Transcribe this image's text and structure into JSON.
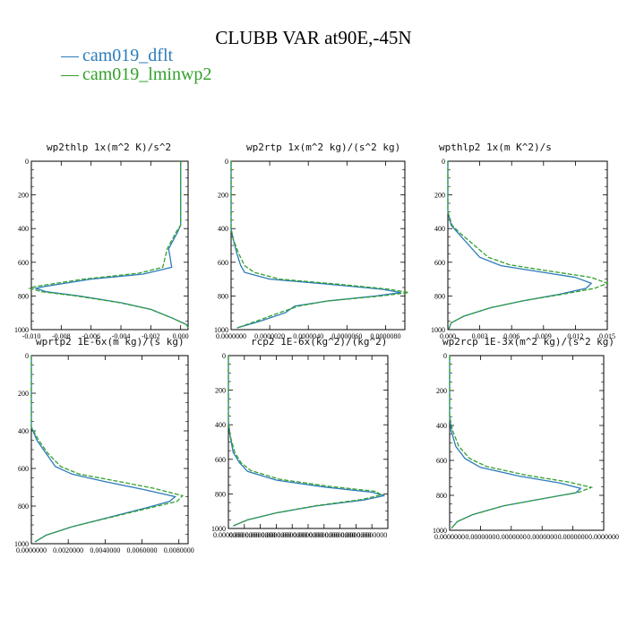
{
  "title": "CLUBB VAR at90E,-45N",
  "legend": [
    {
      "label": "cam019_dflt",
      "color": "#2b7bba"
    },
    {
      "label": "cam019_lminwp2",
      "color": "#33a02c"
    }
  ],
  "chart_data": [
    {
      "type": "line",
      "title": "wp2thlp  1x(m^2 K)/s^2",
      "xlim": [
        -0.01,
        0.0005
      ],
      "ylim": [
        1000,
        0
      ],
      "y_reversed": true,
      "xticks": [
        -0.01,
        -0.008,
        -0.006,
        -0.004,
        -0.002,
        0.0
      ],
      "xtick_labels": [
        "-0.010",
        "-0.008",
        "-0.006",
        "-0.004",
        "-0.002",
        "0.000"
      ],
      "yticks": [
        0,
        200,
        400,
        600,
        800,
        1000
      ],
      "ytick_labels": [
        "0",
        "200",
        "400",
        "600",
        "800",
        "1000"
      ],
      "series": [
        {
          "name": "cam019_dflt",
          "style": "solid",
          "points": [
            [
              0.0,
              0
            ],
            [
              0.0,
              200
            ],
            [
              0.0,
              380
            ],
            [
              -0.0002,
              420
            ],
            [
              -0.0008,
              520
            ],
            [
              -0.0006,
              630
            ],
            [
              -0.0025,
              670
            ],
            [
              -0.006,
              700
            ],
            [
              -0.0092,
              745
            ],
            [
              -0.0097,
              755
            ],
            [
              -0.009,
              775
            ],
            [
              -0.0068,
              800
            ],
            [
              -0.004,
              840
            ],
            [
              -0.002,
              880
            ],
            [
              -0.0006,
              930
            ],
            [
              0.0004,
              970
            ],
            [
              0.0005,
              990
            ]
          ]
        },
        {
          "name": "cam019_lminwp2",
          "style": "dashed",
          "points": [
            [
              0.0,
              0
            ],
            [
              0.0,
              200
            ],
            [
              0.0,
              380
            ],
            [
              -0.0003,
              420
            ],
            [
              -0.0009,
              520
            ],
            [
              -0.0012,
              630
            ],
            [
              -0.0028,
              665
            ],
            [
              -0.0065,
              700
            ],
            [
              -0.0098,
              745
            ],
            [
              -0.0101,
              755
            ],
            [
              -0.0093,
              775
            ],
            [
              -0.007,
              800
            ],
            [
              -0.0041,
              840
            ],
            [
              -0.002,
              880
            ],
            [
              -0.0006,
              930
            ],
            [
              0.0004,
              970
            ],
            [
              0.0005,
              990
            ]
          ]
        }
      ]
    },
    {
      "type": "line",
      "title": "wp2rtp  1x(m^2 kg)/(s^2 kg)",
      "xlim": [
        0.0,
        9e-06
      ],
      "ylim": [
        1000,
        0
      ],
      "y_reversed": true,
      "xticks": [
        0.0,
        2e-06,
        4e-06,
        6e-06,
        8e-06
      ],
      "xtick_labels": [
        "0.0000000",
        "0.0000020",
        "0.0000040",
        "0.0000060",
        "0.0000080"
      ],
      "yticks": [
        0,
        200,
        400,
        600,
        800,
        1000
      ],
      "ytick_labels": [
        "0",
        "200",
        "400",
        "600",
        "800",
        "1000"
      ],
      "series": [
        {
          "name": "cam019_dflt",
          "style": "solid",
          "points": [
            [
              0.0,
              0
            ],
            [
              0.0,
              300
            ],
            [
              0.0,
              400
            ],
            [
              1e-07,
              460
            ],
            [
              3e-07,
              550
            ],
            [
              5e-07,
              620
            ],
            [
              7e-07,
              660
            ],
            [
              2e-06,
              700
            ],
            [
              5e-06,
              730
            ],
            [
              7.8e-06,
              760
            ],
            [
              8.8e-06,
              780
            ],
            [
              7.5e-06,
              800
            ],
            [
              5e-06,
              830
            ],
            [
              3.3e-06,
              860
            ],
            [
              2.8e-06,
              900
            ],
            [
              1.5e-06,
              950
            ],
            [
              3e-07,
              990
            ]
          ]
        },
        {
          "name": "cam019_lminwp2",
          "style": "dashed",
          "points": [
            [
              0.0,
              0
            ],
            [
              0.0,
              300
            ],
            [
              0.0,
              400
            ],
            [
              1e-07,
              460
            ],
            [
              4e-07,
              550
            ],
            [
              7e-07,
              620
            ],
            [
              1.2e-06,
              660
            ],
            [
              2.5e-06,
              700
            ],
            [
              5.5e-06,
              730
            ],
            [
              8.2e-06,
              760
            ],
            [
              9.2e-06,
              780
            ],
            [
              7.8e-06,
              800
            ],
            [
              5e-06,
              830
            ],
            [
              3.5e-06,
              860
            ],
            [
              2.5e-06,
              900
            ],
            [
              1.3e-06,
              950
            ],
            [
              3e-07,
              990
            ]
          ]
        }
      ]
    },
    {
      "type": "line",
      "title": "wpthlp2  1x(m K^2)/s",
      "xlim": [
        0.0,
        0.015
      ],
      "ylim": [
        1000,
        0
      ],
      "y_reversed": true,
      "xticks": [
        0.0,
        0.003,
        0.006,
        0.009,
        0.012,
        0.015
      ],
      "xtick_labels": [
        "0.000",
        "0.003",
        "0.006",
        "0.009",
        "0.012",
        "0.015"
      ],
      "yticks": [
        0,
        200,
        400,
        600,
        800,
        1000
      ],
      "ytick_labels": [
        "0",
        "200",
        "400",
        "600",
        "800",
        "1000"
      ],
      "series": [
        {
          "name": "cam019_dflt",
          "style": "solid",
          "points": [
            [
              0.0,
              0
            ],
            [
              0.0,
              300
            ],
            [
              0.0003,
              380
            ],
            [
              0.001,
              430
            ],
            [
              0.002,
              500
            ],
            [
              0.003,
              570
            ],
            [
              0.005,
              620
            ],
            [
              0.009,
              660
            ],
            [
              0.012,
              690
            ],
            [
              0.0135,
              725
            ],
            [
              0.013,
              755
            ],
            [
              0.0105,
              790
            ],
            [
              0.007,
              830
            ],
            [
              0.004,
              870
            ],
            [
              0.0015,
              920
            ],
            [
              0.0003,
              960
            ],
            [
              0.0001,
              995
            ]
          ]
        },
        {
          "name": "cam019_lminwp2",
          "style": "dashed",
          "points": [
            [
              0.0,
              0
            ],
            [
              0.0,
              300
            ],
            [
              0.0004,
              380
            ],
            [
              0.0012,
              430
            ],
            [
              0.0025,
              500
            ],
            [
              0.0038,
              570
            ],
            [
              0.0058,
              615
            ],
            [
              0.0098,
              655
            ],
            [
              0.0135,
              690
            ],
            [
              0.015,
              725
            ],
            [
              0.0138,
              755
            ],
            [
              0.0108,
              790
            ],
            [
              0.007,
              830
            ],
            [
              0.004,
              870
            ],
            [
              0.0015,
              920
            ],
            [
              0.0003,
              960
            ],
            [
              0.0001,
              995
            ]
          ]
        }
      ]
    },
    {
      "type": "line",
      "title": "wprtp2  1E-6x(m kg)/(s kg)",
      "xlim": [
        0.0,
        0.0085
      ],
      "ylim": [
        1000,
        0
      ],
      "y_reversed": true,
      "xticks": [
        0.0,
        0.002,
        0.004,
        0.006,
        0.008
      ],
      "xtick_labels": [
        "0.0000000",
        "0.0020000",
        "0.0040000",
        "0.0060000",
        "0.0080000"
      ],
      "yticks": [
        0,
        200,
        400,
        600,
        800,
        1000
      ],
      "ytick_labels": [
        "0",
        "200",
        "400",
        "600",
        "800",
        "1000"
      ],
      "series": [
        {
          "name": "cam019_dflt",
          "style": "solid",
          "points": [
            [
              0.0,
              0
            ],
            [
              0.0,
              300
            ],
            [
              0.0,
              380
            ],
            [
              0.0003,
              450
            ],
            [
              0.0008,
              520
            ],
            [
              0.0013,
              590
            ],
            [
              0.0022,
              630
            ],
            [
              0.004,
              670
            ],
            [
              0.006,
              710
            ],
            [
              0.0078,
              750
            ],
            [
              0.0075,
              775
            ],
            [
              0.0062,
              810
            ],
            [
              0.0042,
              860
            ],
            [
              0.0022,
              910
            ],
            [
              0.0008,
              955
            ],
            [
              0.0002,
              990
            ]
          ]
        },
        {
          "name": "cam019_lminwp2",
          "style": "dashed",
          "points": [
            [
              0.0,
              0
            ],
            [
              0.0,
              300
            ],
            [
              0.0,
              380
            ],
            [
              0.0004,
              450
            ],
            [
              0.0009,
              520
            ],
            [
              0.0016,
              590
            ],
            [
              0.0026,
              630
            ],
            [
              0.0045,
              665
            ],
            [
              0.0066,
              705
            ],
            [
              0.0082,
              745
            ],
            [
              0.0079,
              775
            ],
            [
              0.0064,
              810
            ],
            [
              0.0043,
              860
            ],
            [
              0.0022,
              910
            ],
            [
              0.0008,
              955
            ],
            [
              0.0002,
              990
            ]
          ]
        }
      ]
    },
    {
      "type": "line",
      "title": "rcp2  1E-6x(kg^2)/(kg^2)",
      "xlim": [
        0.0,
        1.0
      ],
      "ylim": [
        1000,
        0
      ],
      "y_reversed": true,
      "xticks": [
        0.0,
        0.1,
        0.2,
        0.3,
        0.4,
        0.5,
        0.6,
        0.7,
        0.8,
        0.9
      ],
      "xtick_labels": [
        "0.0000000",
        "0.0000000",
        "0.0000000",
        "0.0000000",
        "0.0000000",
        "0.0000000",
        "0.0000000",
        "0.0000000",
        "0.0000000",
        "0.0000000"
      ],
      "yticks": [
        0,
        200,
        400,
        600,
        800,
        1000
      ],
      "ytick_labels": [
        "0",
        "200",
        "400",
        "600",
        "800",
        "1000"
      ],
      "series": [
        {
          "name": "cam019_dflt",
          "style": "solid",
          "points": [
            [
              0.0,
              0
            ],
            [
              0.0,
              380
            ],
            [
              0.01,
              460
            ],
            [
              0.03,
              560
            ],
            [
              0.07,
              620
            ],
            [
              0.12,
              670
            ],
            [
              0.3,
              720
            ],
            [
              0.6,
              760
            ],
            [
              0.9,
              790
            ],
            [
              0.98,
              810
            ],
            [
              0.85,
              835
            ],
            [
              0.55,
              870
            ],
            [
              0.3,
              910
            ],
            [
              0.12,
              950
            ],
            [
              0.03,
              985
            ]
          ]
        },
        {
          "name": "cam019_lminwp2",
          "style": "dashed",
          "points": [
            [
              0.0,
              0
            ],
            [
              0.0,
              380
            ],
            [
              0.01,
              460
            ],
            [
              0.04,
              560
            ],
            [
              0.08,
              620
            ],
            [
              0.14,
              665
            ],
            [
              0.32,
              715
            ],
            [
              0.62,
              755
            ],
            [
              0.92,
              785
            ],
            [
              0.96,
              805
            ],
            [
              0.84,
              832
            ],
            [
              0.55,
              868
            ],
            [
              0.3,
              910
            ],
            [
              0.12,
              950
            ],
            [
              0.03,
              985
            ]
          ]
        }
      ]
    },
    {
      "type": "line",
      "title": "wp2rcp  1E-3x(m^2 kg)/(s^2 kg)",
      "xlim": [
        0.0,
        1.0
      ],
      "ylim": [
        1000,
        0
      ],
      "y_reversed": true,
      "xticks": [
        0.0,
        0.2,
        0.4,
        0.6,
        0.8,
        1.0
      ],
      "xtick_labels": [
        "0.0000000",
        "0.0000000",
        "0.0000000",
        "0.0000000",
        "0.0000000",
        "0.0000000"
      ],
      "yticks": [
        0,
        200,
        400,
        600,
        800,
        1000
      ],
      "ytick_labels": [
        "0",
        "200",
        "400",
        "600",
        "800",
        "1000"
      ],
      "series": [
        {
          "name": "cam019_dflt",
          "style": "solid",
          "points": [
            [
              0.0,
              0
            ],
            [
              0.0,
              350
            ],
            [
              0.01,
              430
            ],
            [
              0.04,
              520
            ],
            [
              0.1,
              590
            ],
            [
              0.2,
              640
            ],
            [
              0.45,
              690
            ],
            [
              0.72,
              730
            ],
            [
              0.85,
              760
            ],
            [
              0.82,
              785
            ],
            [
              0.6,
              820
            ],
            [
              0.35,
              860
            ],
            [
              0.15,
              910
            ],
            [
              0.05,
              950
            ],
            [
              0.01,
              990
            ]
          ]
        },
        {
          "name": "cam019_lminwp2",
          "style": "dashed",
          "points": [
            [
              0.0,
              0
            ],
            [
              0.0,
              350
            ],
            [
              0.02,
              430
            ],
            [
              0.06,
              520
            ],
            [
              0.13,
              590
            ],
            [
              0.24,
              635
            ],
            [
              0.5,
              685
            ],
            [
              0.78,
              725
            ],
            [
              0.92,
              755
            ],
            [
              0.84,
              782
            ],
            [
              0.6,
              820
            ],
            [
              0.35,
              860
            ],
            [
              0.15,
              910
            ],
            [
              0.05,
              950
            ],
            [
              0.01,
              990
            ]
          ]
        }
      ]
    }
  ]
}
